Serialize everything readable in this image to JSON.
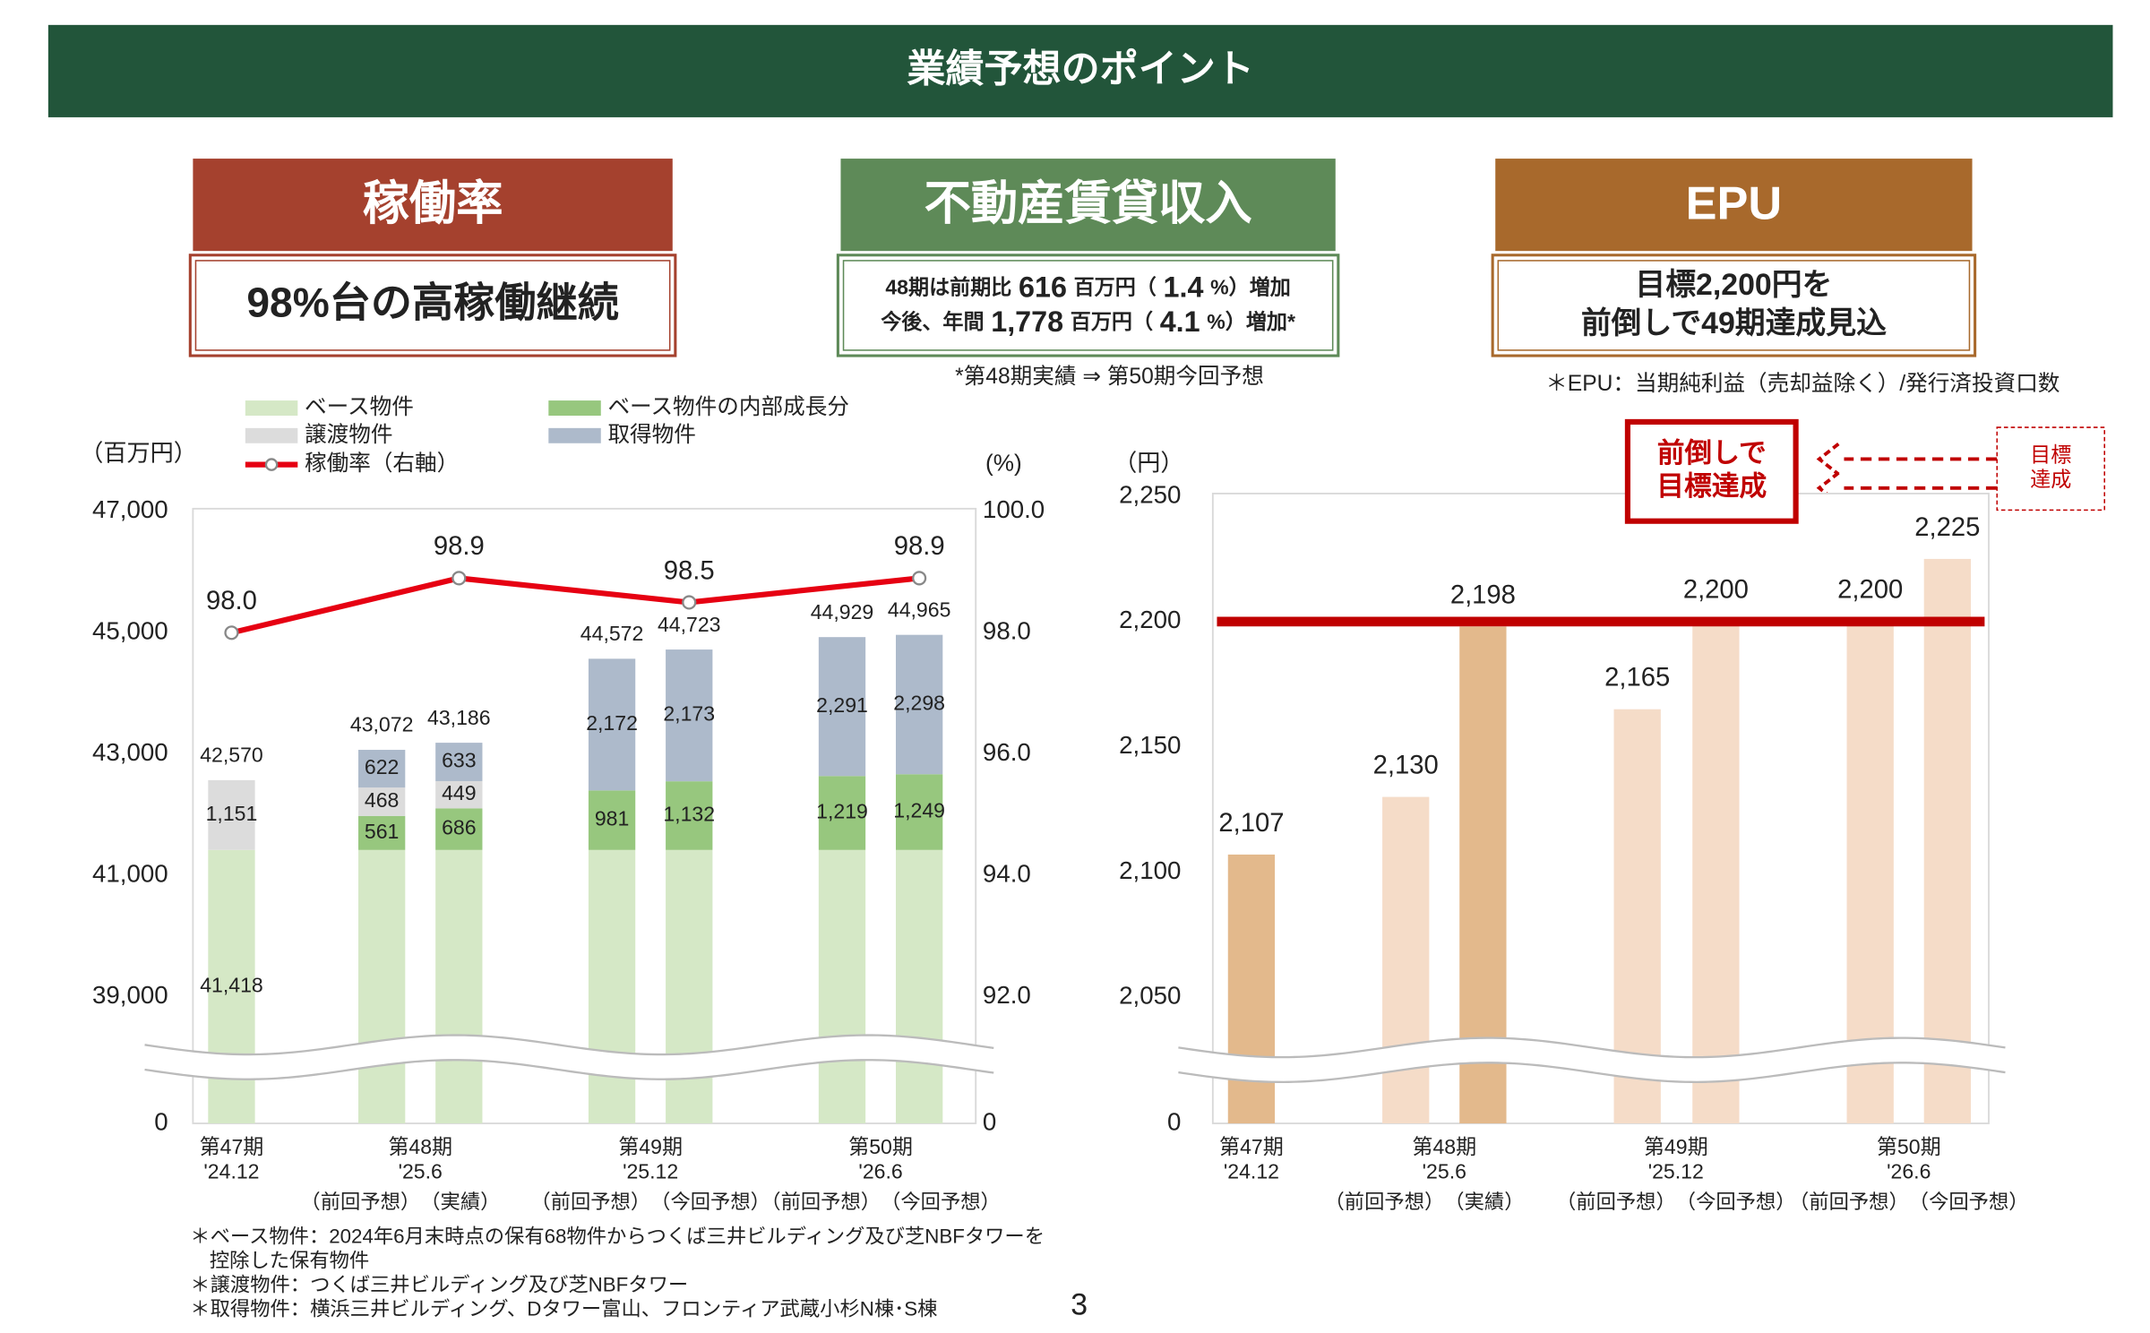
{
  "header": {
    "title": "業績予想のポイント"
  },
  "panels": [
    {
      "title": "稼働率",
      "lines": [
        [
          "98%台の高稼働継続"
        ]
      ]
    },
    {
      "title": "不動産賃貸収入",
      "lines": [
        [
          "48期は前期比",
          "616",
          "百万円（",
          "1.4",
          "%）増加"
        ],
        [
          "今後、年間",
          "1,778",
          "百万円（",
          "4.1",
          "%）増加*"
        ]
      ],
      "note": "*第48期実績 ⇒ 第50期今回予想"
    },
    {
      "title": "EPU",
      "lines": [
        [
          "目標2,200円を"
        ],
        [
          "前倒しで49期達成見込"
        ]
      ],
      "note": "＊EPU：当期純利益（売却益除く）/発行済投資口数"
    }
  ],
  "chart_data": [
    {
      "type": "bar",
      "y_axis_title": "（百万円）",
      "y2_axis_title": "(%)",
      "group_labels": [
        "第47期",
        "第48期",
        "第49期",
        "第50期"
      ],
      "group_dates": [
        "'24.12",
        "'25.6",
        "'25.12",
        "'26.6"
      ],
      "categories": [
        null,
        "（前回予想）",
        "（実績）",
        "（前回予想）",
        "（今回予想）",
        "（前回予想）",
        "（今回予想）"
      ],
      "series": [
        {
          "name": "ベース物件",
          "color": "#d5e8c6",
          "values": [
            41418,
            41418,
            41418,
            41418,
            41418,
            41418,
            41418
          ],
          "value_labels": [
            "41,418",
            null,
            null,
            null,
            null,
            null,
            null
          ]
        },
        {
          "name": "ベース物件の内部成長分",
          "color": "#97c77e",
          "values": [
            null,
            561,
            686,
            981,
            1132,
            1219,
            1249
          ],
          "value_labels": [
            null,
            "561",
            "686",
            "981",
            "1,132",
            "1,219",
            "1,249"
          ]
        },
        {
          "name": "譲渡物件",
          "color": "#dcdcdc",
          "values": [
            1151,
            468,
            449,
            null,
            null,
            null,
            null
          ],
          "value_labels": [
            "1,151",
            "468",
            "449",
            null,
            null,
            null,
            null
          ]
        },
        {
          "name": "取得物件",
          "color": "#adbacb",
          "values": [
            null,
            622,
            633,
            2172,
            2173,
            2291,
            2298
          ],
          "value_labels": [
            null,
            "622",
            "633",
            "2,172",
            "2,173",
            "2,291",
            "2,298"
          ]
        }
      ],
      "totals": [
        42570,
        43072,
        43186,
        44572,
        44723,
        44929,
        44965
      ],
      "total_labels": [
        "42,570",
        "43,072",
        "43,186",
        "44,572",
        "44,723",
        "44,929",
        "44,965"
      ],
      "line": {
        "name": "稼働率（右軸）",
        "color": "#e60012",
        "axis": "y2",
        "values": [
          98.0,
          98.9,
          98.5,
          98.9
        ],
        "value_labels": [
          "98.0",
          "98.9",
          "98.5",
          "98.9"
        ]
      },
      "ylim": [
        0,
        47000
      ],
      "axis_break": [
        0,
        38000
      ],
      "yticks": [
        0,
        {
          "value": 39000,
          "label": "39,000"
        },
        {
          "value": 41000,
          "label": "41,000"
        },
        {
          "value": 43000,
          "label": "43,000"
        },
        {
          "value": 45000,
          "label": "45,000"
        },
        {
          "value": 47000,
          "label": "47,000"
        }
      ],
      "y2lim": [
        0,
        100
      ],
      "y2_axis_break": [
        0,
        91
      ],
      "y2ticks": [
        0,
        {
          "value": 92,
          "label": "92.0"
        },
        {
          "value": 94,
          "label": "94.0"
        },
        {
          "value": 96,
          "label": "96.0"
        },
        {
          "value": 98,
          "label": "98.0"
        },
        {
          "value": 100,
          "label": "100.0"
        }
      ]
    },
    {
      "type": "bar",
      "y_axis_title": "（円）",
      "group_labels": [
        "第47期",
        "第48期",
        "第49期",
        "第50期"
      ],
      "group_dates": [
        "'24.12",
        "'25.6",
        "'25.12",
        "'26.6"
      ],
      "categories": [
        null,
        "（前回予想）",
        "（実績）",
        "（前回予想）",
        "（今回予想）",
        "（前回予想）",
        "（今回予想）"
      ],
      "values": [
        2107,
        2130,
        2198,
        2165,
        2200,
        2200,
        2225
      ],
      "value_labels": [
        "2,107",
        "2,130",
        "2,198",
        "2,165",
        "2,200",
        "2,200",
        "2,225"
      ],
      "colors": [
        "#e3b98c",
        "#f5dcc8",
        "#e3b98c",
        "#f5dcc8",
        "#f5dcc8",
        "#f5dcc8",
        "#f5dcc8"
      ],
      "ylim": [
        0,
        2250
      ],
      "axis_break": [
        0,
        2025
      ],
      "yticks": [
        0,
        {
          "value": 2050,
          "label": "2,050"
        },
        {
          "value": 2100,
          "label": "2,100"
        },
        {
          "value": 2150,
          "label": "2,150"
        },
        {
          "value": 2200,
          "label": "2,200"
        },
        {
          "value": 2250,
          "label": "2,250"
        }
      ],
      "target_line": {
        "value": 2200,
        "color": "#c00000"
      },
      "annotations": [
        {
          "lines": [
            "前倒しで",
            "目標達成"
          ]
        },
        {
          "lines": [
            "目標",
            "達成"
          ]
        }
      ]
    }
  ],
  "footnotes": [
    [
      "＊ベース物件：2024年6月末時点の保有68物件からつくば三井ビルディング及び芝NBFタワーを",
      "控除した保有物件"
    ],
    [
      "＊譲渡物件：つくば三井ビルディング及び芝NBFタワー"
    ],
    [
      "＊取得物件：横浜三井ビルディング、Dタワー富山、フロンティア武蔵小杉N棟･S棟"
    ]
  ],
  "page_number": "3"
}
